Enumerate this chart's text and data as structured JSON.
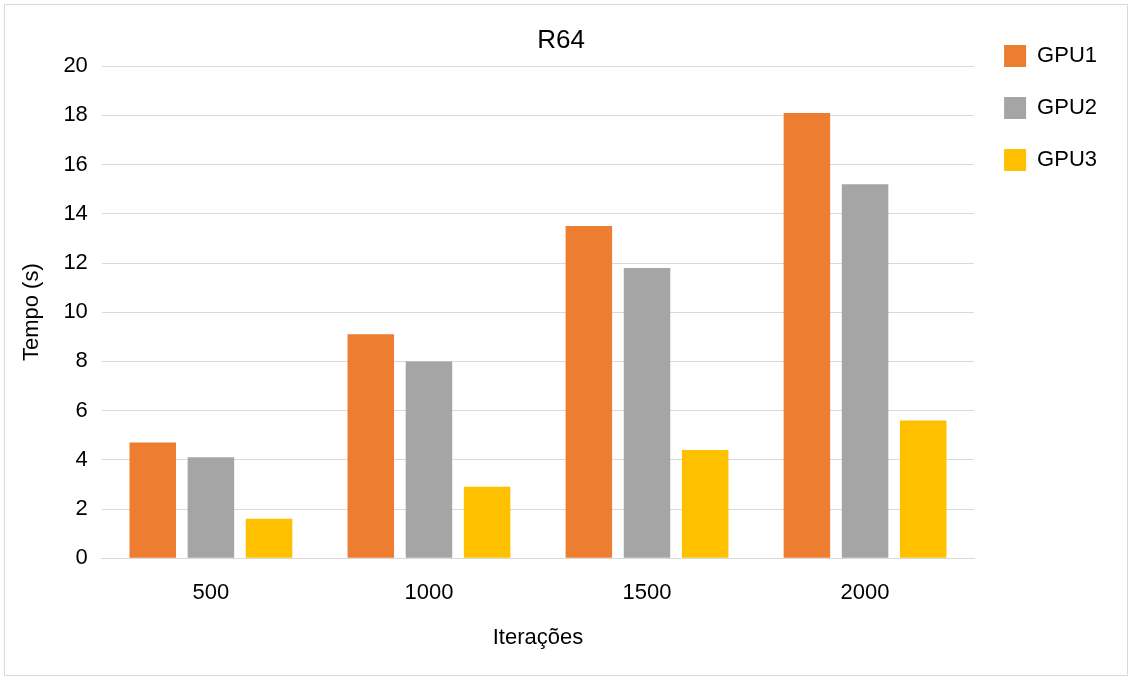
{
  "chart_data": {
    "type": "bar",
    "title": "R64",
    "xlabel": "Iterações",
    "ylabel": "Tempo (s)",
    "categories": [
      "500",
      "1000",
      "1500",
      "2000"
    ],
    "series": [
      {
        "name": "GPU1",
        "color": "#ed7d31",
        "values": [
          4.7,
          9.1,
          13.5,
          18.1
        ]
      },
      {
        "name": "GPU2",
        "color": "#a5a5a5",
        "values": [
          4.1,
          8.0,
          11.8,
          15.2
        ]
      },
      {
        "name": "GPU3",
        "color": "#ffc000",
        "values": [
          1.6,
          2.9,
          4.4,
          5.6
        ]
      }
    ],
    "ylim": [
      0,
      20
    ],
    "yticks": [
      0,
      2,
      4,
      6,
      8,
      10,
      12,
      14,
      16,
      18,
      20
    ],
    "grid": "y",
    "legend": "top right"
  }
}
